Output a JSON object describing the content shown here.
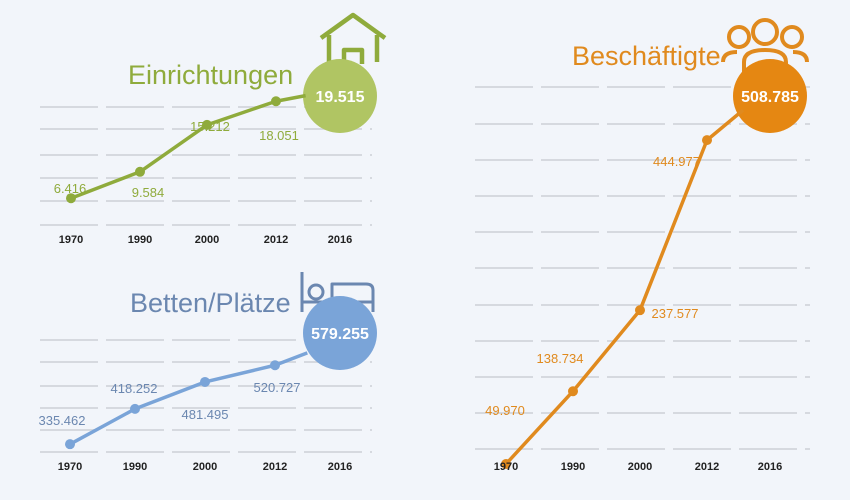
{
  "colors": {
    "green": "#8fab3c",
    "green_bubble": "#b0c563",
    "blue": "#7aa4d8",
    "blue_text": "#6b87b0",
    "orange": "#e08a1e",
    "orange_bubble": "#e58712",
    "grid": "#d6d9df"
  },
  "icons": {
    "einrichtungen": "house-icon",
    "betten": "bed-icon",
    "beschaeftigte": "people-group-icon"
  },
  "chart_data": [
    {
      "id": "einrichtungen",
      "type": "line",
      "title": "Einrichtungen",
      "categories": [
        "1970",
        "1990",
        "2000",
        "2012",
        "2016"
      ],
      "values": [
        6416,
        9584,
        15212,
        18051,
        19515
      ],
      "value_labels": [
        "6.416",
        "9.584",
        "15.212",
        "18.051",
        "19.515"
      ],
      "grid": true,
      "highlight_last": true
    },
    {
      "id": "betten",
      "type": "line",
      "title": "Betten/Plätze",
      "categories": [
        "1970",
        "1990",
        "2000",
        "2012",
        "2016"
      ],
      "values": [
        335462,
        418252,
        481495,
        520727,
        579255
      ],
      "value_labels": [
        "335.462",
        "418.252",
        "481.495",
        "520.727",
        "579.255"
      ],
      "grid": true,
      "highlight_last": true
    },
    {
      "id": "beschaeftigte",
      "type": "line",
      "title": "Beschäftigte",
      "categories": [
        "1970",
        "1990",
        "2000",
        "2012",
        "2016"
      ],
      "values": [
        49970,
        138734,
        237577,
        444977,
        508785
      ],
      "value_labels": [
        "49.970",
        "138.734",
        "237.577",
        "444.977",
        "508.785"
      ],
      "grid": true,
      "highlight_last": true
    }
  ]
}
